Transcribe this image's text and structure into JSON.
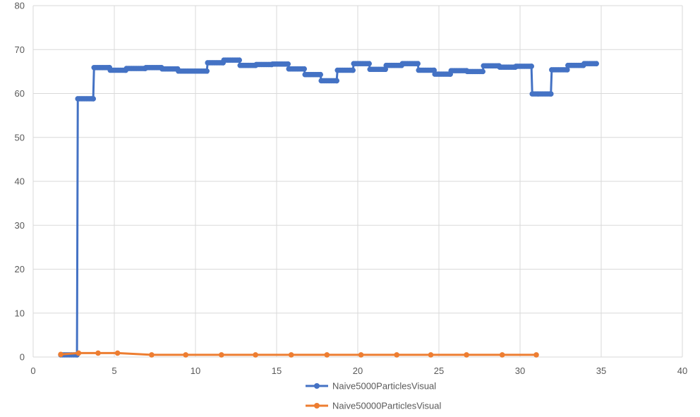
{
  "chart_data": {
    "type": "scatter",
    "title": "",
    "xlabel": "",
    "ylabel": "",
    "xlim": [
      0,
      40
    ],
    "ylim": [
      0,
      80
    ],
    "x_ticks": [
      0,
      5,
      10,
      15,
      20,
      25,
      30,
      35,
      40
    ],
    "y_ticks": [
      0,
      10,
      20,
      30,
      40,
      50,
      60,
      70,
      80
    ],
    "grid": true,
    "legend_position": "bottom",
    "series": [
      {
        "name": "Naive5000ParticlesVisual",
        "color": "#4472C4",
        "style": "line-with-dense-markers",
        "points": [
          [
            1.7,
            0.5
          ],
          [
            2.7,
            0.5
          ],
          [
            2.75,
            58.8
          ],
          [
            3.7,
            58.8
          ],
          [
            3.75,
            65.9
          ],
          [
            4.7,
            65.9
          ],
          [
            4.75,
            65.3
          ],
          [
            5.7,
            65.3
          ],
          [
            5.75,
            65.7
          ],
          [
            6.9,
            65.7
          ],
          [
            6.95,
            65.9
          ],
          [
            7.9,
            65.9
          ],
          [
            7.95,
            65.6
          ],
          [
            8.9,
            65.6
          ],
          [
            8.95,
            65.1
          ],
          [
            10.7,
            65.1
          ],
          [
            10.75,
            67.0
          ],
          [
            11.7,
            67.0
          ],
          [
            11.75,
            67.6
          ],
          [
            12.7,
            67.6
          ],
          [
            12.75,
            66.4
          ],
          [
            13.7,
            66.4
          ],
          [
            13.75,
            66.6
          ],
          [
            14.7,
            66.6
          ],
          [
            14.75,
            66.7
          ],
          [
            15.7,
            66.7
          ],
          [
            15.75,
            65.6
          ],
          [
            16.7,
            65.6
          ],
          [
            16.75,
            64.3
          ],
          [
            17.7,
            64.3
          ],
          [
            17.75,
            62.9
          ],
          [
            18.7,
            62.9
          ],
          [
            18.75,
            65.3
          ],
          [
            19.7,
            65.3
          ],
          [
            19.75,
            66.8
          ],
          [
            20.7,
            66.8
          ],
          [
            20.75,
            65.5
          ],
          [
            21.7,
            65.5
          ],
          [
            21.75,
            66.4
          ],
          [
            22.7,
            66.4
          ],
          [
            22.75,
            66.8
          ],
          [
            23.7,
            66.8
          ],
          [
            23.75,
            65.3
          ],
          [
            24.7,
            65.3
          ],
          [
            24.75,
            64.4
          ],
          [
            25.7,
            64.4
          ],
          [
            25.75,
            65.2
          ],
          [
            26.7,
            65.2
          ],
          [
            26.75,
            65.0
          ],
          [
            27.7,
            65.0
          ],
          [
            27.75,
            66.3
          ],
          [
            28.7,
            66.3
          ],
          [
            28.75,
            66.0
          ],
          [
            29.7,
            66.0
          ],
          [
            29.75,
            66.2
          ],
          [
            30.7,
            66.2
          ],
          [
            30.75,
            59.9
          ],
          [
            31.9,
            59.9
          ],
          [
            31.95,
            65.4
          ],
          [
            32.9,
            65.4
          ],
          [
            32.95,
            66.4
          ],
          [
            33.9,
            66.4
          ],
          [
            33.95,
            66.8
          ],
          [
            34.7,
            66.8
          ]
        ]
      },
      {
        "name": "Naive50000ParticlesVisual",
        "color": "#ED7D31",
        "style": "line-with-markers",
        "points": [
          [
            1.7,
            0.6
          ],
          [
            2.8,
            0.9
          ],
          [
            4.0,
            0.9
          ],
          [
            5.2,
            0.9
          ],
          [
            7.3,
            0.5
          ],
          [
            9.4,
            0.5
          ],
          [
            11.6,
            0.5
          ],
          [
            13.7,
            0.5
          ],
          [
            15.9,
            0.5
          ],
          [
            18.1,
            0.5
          ],
          [
            20.2,
            0.5
          ],
          [
            22.4,
            0.5
          ],
          [
            24.5,
            0.5
          ],
          [
            26.7,
            0.5
          ],
          [
            28.9,
            0.5
          ],
          [
            31.0,
            0.5
          ]
        ]
      }
    ]
  }
}
